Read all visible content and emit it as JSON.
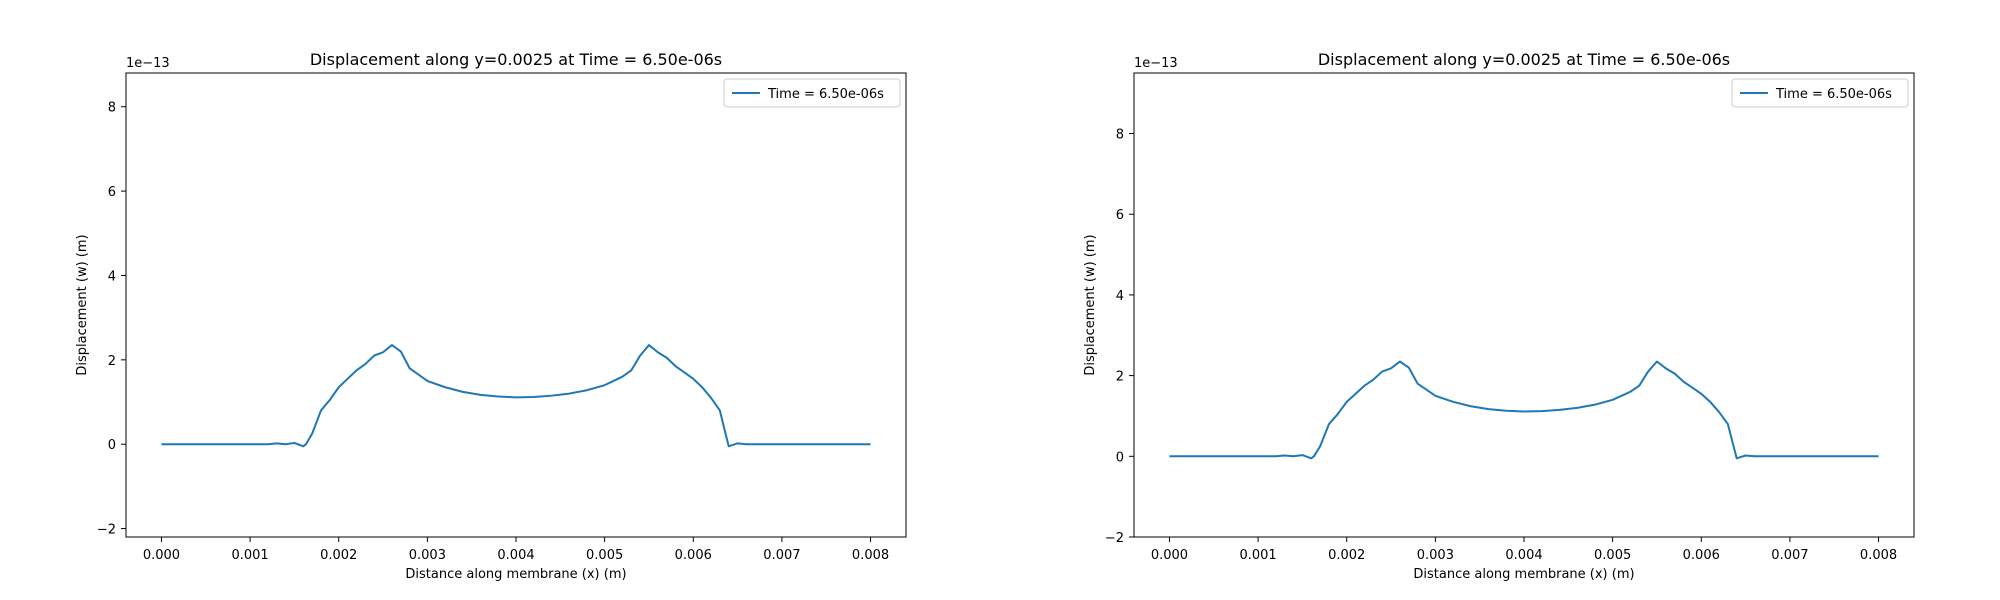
{
  "chart_data": [
    {
      "type": "line",
      "title": "Displacement along y=0.0025 at Time = 6.50e-06s",
      "xlabel": "Distance along membrane (x) (m)",
      "ylabel": "Displacement (w) (m)",
      "offset_text": "1e−13",
      "xlim": [
        -0.0004,
        0.0084
      ],
      "ylim": [
        -2.2,
        8.8
      ],
      "x_ticks": [
        0.0,
        0.001,
        0.002,
        0.003,
        0.004,
        0.005,
        0.006,
        0.007,
        0.008
      ],
      "x_tick_labels": [
        "0.000",
        "0.001",
        "0.002",
        "0.003",
        "0.004",
        "0.005",
        "0.006",
        "0.007",
        "0.008"
      ],
      "y_ticks": [
        -2,
        0,
        2,
        4,
        6,
        8
      ],
      "y_tick_labels": [
        "−2",
        "0",
        "2",
        "4",
        "6",
        "8"
      ],
      "grid": false,
      "legend_position": "top-right",
      "series": [
        {
          "name": "Time = 6.50e-06s",
          "color": "#1f77b4",
          "x": [
            0.0,
            0.0005,
            0.001,
            0.0012,
            0.0013,
            0.0014,
            0.0015,
            0.0016,
            0.00163,
            0.0017,
            0.0018,
            0.0019,
            0.002,
            0.0021,
            0.0022,
            0.0023,
            0.0024,
            0.0025,
            0.0026,
            0.0027,
            0.0028,
            0.0029,
            0.003,
            0.0032,
            0.0034,
            0.0036,
            0.0038,
            0.004,
            0.0042,
            0.0044,
            0.0046,
            0.0048,
            0.005,
            0.0051,
            0.0052,
            0.0053,
            0.0054,
            0.0055,
            0.0056,
            0.0057,
            0.0058,
            0.0059,
            0.006,
            0.0061,
            0.0062,
            0.0063,
            0.00637,
            0.0064,
            0.0065,
            0.0066,
            0.0067,
            0.0068,
            0.007,
            0.0075,
            0.008
          ],
          "y": [
            0.0,
            0.0,
            0.0,
            0.0,
            0.02,
            0.0,
            0.03,
            -0.05,
            0.0,
            0.25,
            0.8,
            1.05,
            1.35,
            1.55,
            1.75,
            1.9,
            2.1,
            2.18,
            2.35,
            2.2,
            1.8,
            1.65,
            1.5,
            1.35,
            1.24,
            1.17,
            1.13,
            1.11,
            1.12,
            1.15,
            1.2,
            1.28,
            1.4,
            1.5,
            1.6,
            1.75,
            2.1,
            2.35,
            2.18,
            2.05,
            1.85,
            1.7,
            1.55,
            1.35,
            1.1,
            0.8,
            0.2,
            -0.05,
            0.02,
            0.0,
            0.0,
            0.0,
            0.0,
            0.0,
            0.0
          ]
        }
      ]
    },
    {
      "type": "line",
      "title": "Displacement along y=0.0025 at Time = 6.50e-06s",
      "xlabel": "Distance along membrane (x) (m)",
      "ylabel": "Displacement (w) (m)",
      "offset_text": "1e−13",
      "xlim": [
        -0.0004,
        0.0084
      ],
      "ylim": [
        -2.0,
        9.5
      ],
      "x_ticks": [
        0.0,
        0.001,
        0.002,
        0.003,
        0.004,
        0.005,
        0.006,
        0.007,
        0.008
      ],
      "x_tick_labels": [
        "0.000",
        "0.001",
        "0.002",
        "0.003",
        "0.004",
        "0.005",
        "0.006",
        "0.007",
        "0.008"
      ],
      "y_ticks": [
        -2,
        0,
        2,
        4,
        6,
        8
      ],
      "y_tick_labels": [
        "−2",
        "0",
        "2",
        "4",
        "6",
        "8"
      ],
      "grid": false,
      "legend_position": "top-right",
      "series": [
        {
          "name": "Time = 6.50e-06s",
          "color": "#1f77b4",
          "x": [
            0.0,
            0.0005,
            0.001,
            0.0012,
            0.0013,
            0.0014,
            0.0015,
            0.0016,
            0.00163,
            0.0017,
            0.0018,
            0.0019,
            0.002,
            0.0021,
            0.0022,
            0.0023,
            0.0024,
            0.0025,
            0.0026,
            0.0027,
            0.0028,
            0.0029,
            0.003,
            0.0032,
            0.0034,
            0.0036,
            0.0038,
            0.004,
            0.0042,
            0.0044,
            0.0046,
            0.0048,
            0.005,
            0.0051,
            0.0052,
            0.0053,
            0.0054,
            0.0055,
            0.0056,
            0.0057,
            0.0058,
            0.0059,
            0.006,
            0.0061,
            0.0062,
            0.0063,
            0.00637,
            0.0064,
            0.0065,
            0.0066,
            0.0067,
            0.0068,
            0.007,
            0.0075,
            0.008
          ],
          "y": [
            0.0,
            0.0,
            0.0,
            0.0,
            0.02,
            0.0,
            0.03,
            -0.05,
            0.0,
            0.25,
            0.8,
            1.05,
            1.35,
            1.55,
            1.75,
            1.9,
            2.1,
            2.18,
            2.35,
            2.2,
            1.8,
            1.65,
            1.5,
            1.35,
            1.24,
            1.17,
            1.13,
            1.11,
            1.12,
            1.15,
            1.2,
            1.28,
            1.4,
            1.5,
            1.6,
            1.75,
            2.1,
            2.35,
            2.18,
            2.05,
            1.85,
            1.7,
            1.55,
            1.35,
            1.1,
            0.8,
            0.2,
            -0.05,
            0.02,
            0.0,
            0.0,
            0.0,
            0.0,
            0.0,
            0.0
          ]
        }
      ]
    }
  ]
}
